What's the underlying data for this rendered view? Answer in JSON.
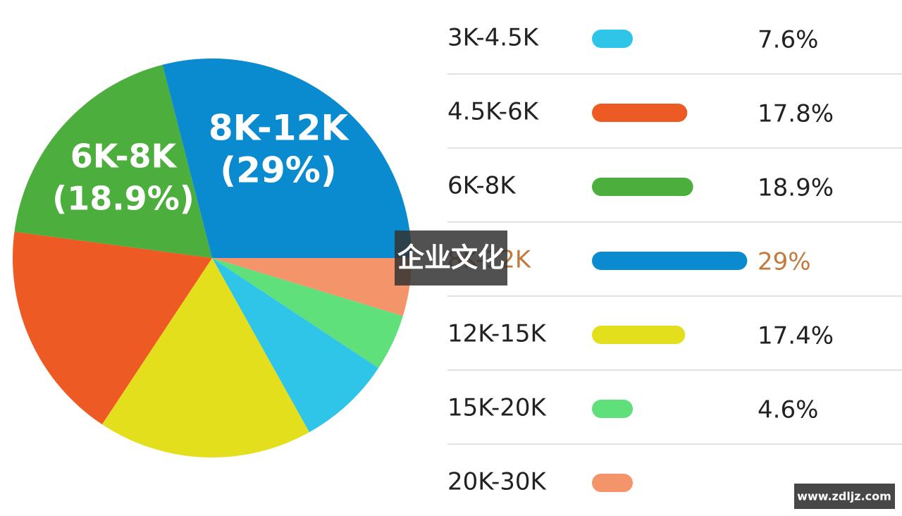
{
  "chart_data": {
    "type": "pie",
    "categories": [
      "3K-4.5K",
      "4.5K-6K",
      "6K-8K",
      "8K-12K",
      "12K-15K",
      "15K-20K",
      "20K-30K"
    ],
    "values": [
      7.6,
      17.8,
      18.9,
      29,
      17.4,
      4.6,
      4.7
    ],
    "value_labels": [
      "7.6%",
      "17.8%",
      "18.9%",
      "29%",
      "17.4%",
      "4.6%",
      null
    ],
    "colors": [
      "#2ec5e8",
      "#ee5a24",
      "#4cae3c",
      "#0a8bd0",
      "#e3df1c",
      "#5fe07a",
      "#f3946a"
    ],
    "highlight_index": 3,
    "highlight_color": "#c27a3e",
    "annotations": [
      [
        "8K-12K",
        "(29%)"
      ],
      [
        "6K-8K",
        "(18.9%)"
      ]
    ],
    "watermarks": [
      "企业文化",
      "www.zdljz.com"
    ]
  }
}
